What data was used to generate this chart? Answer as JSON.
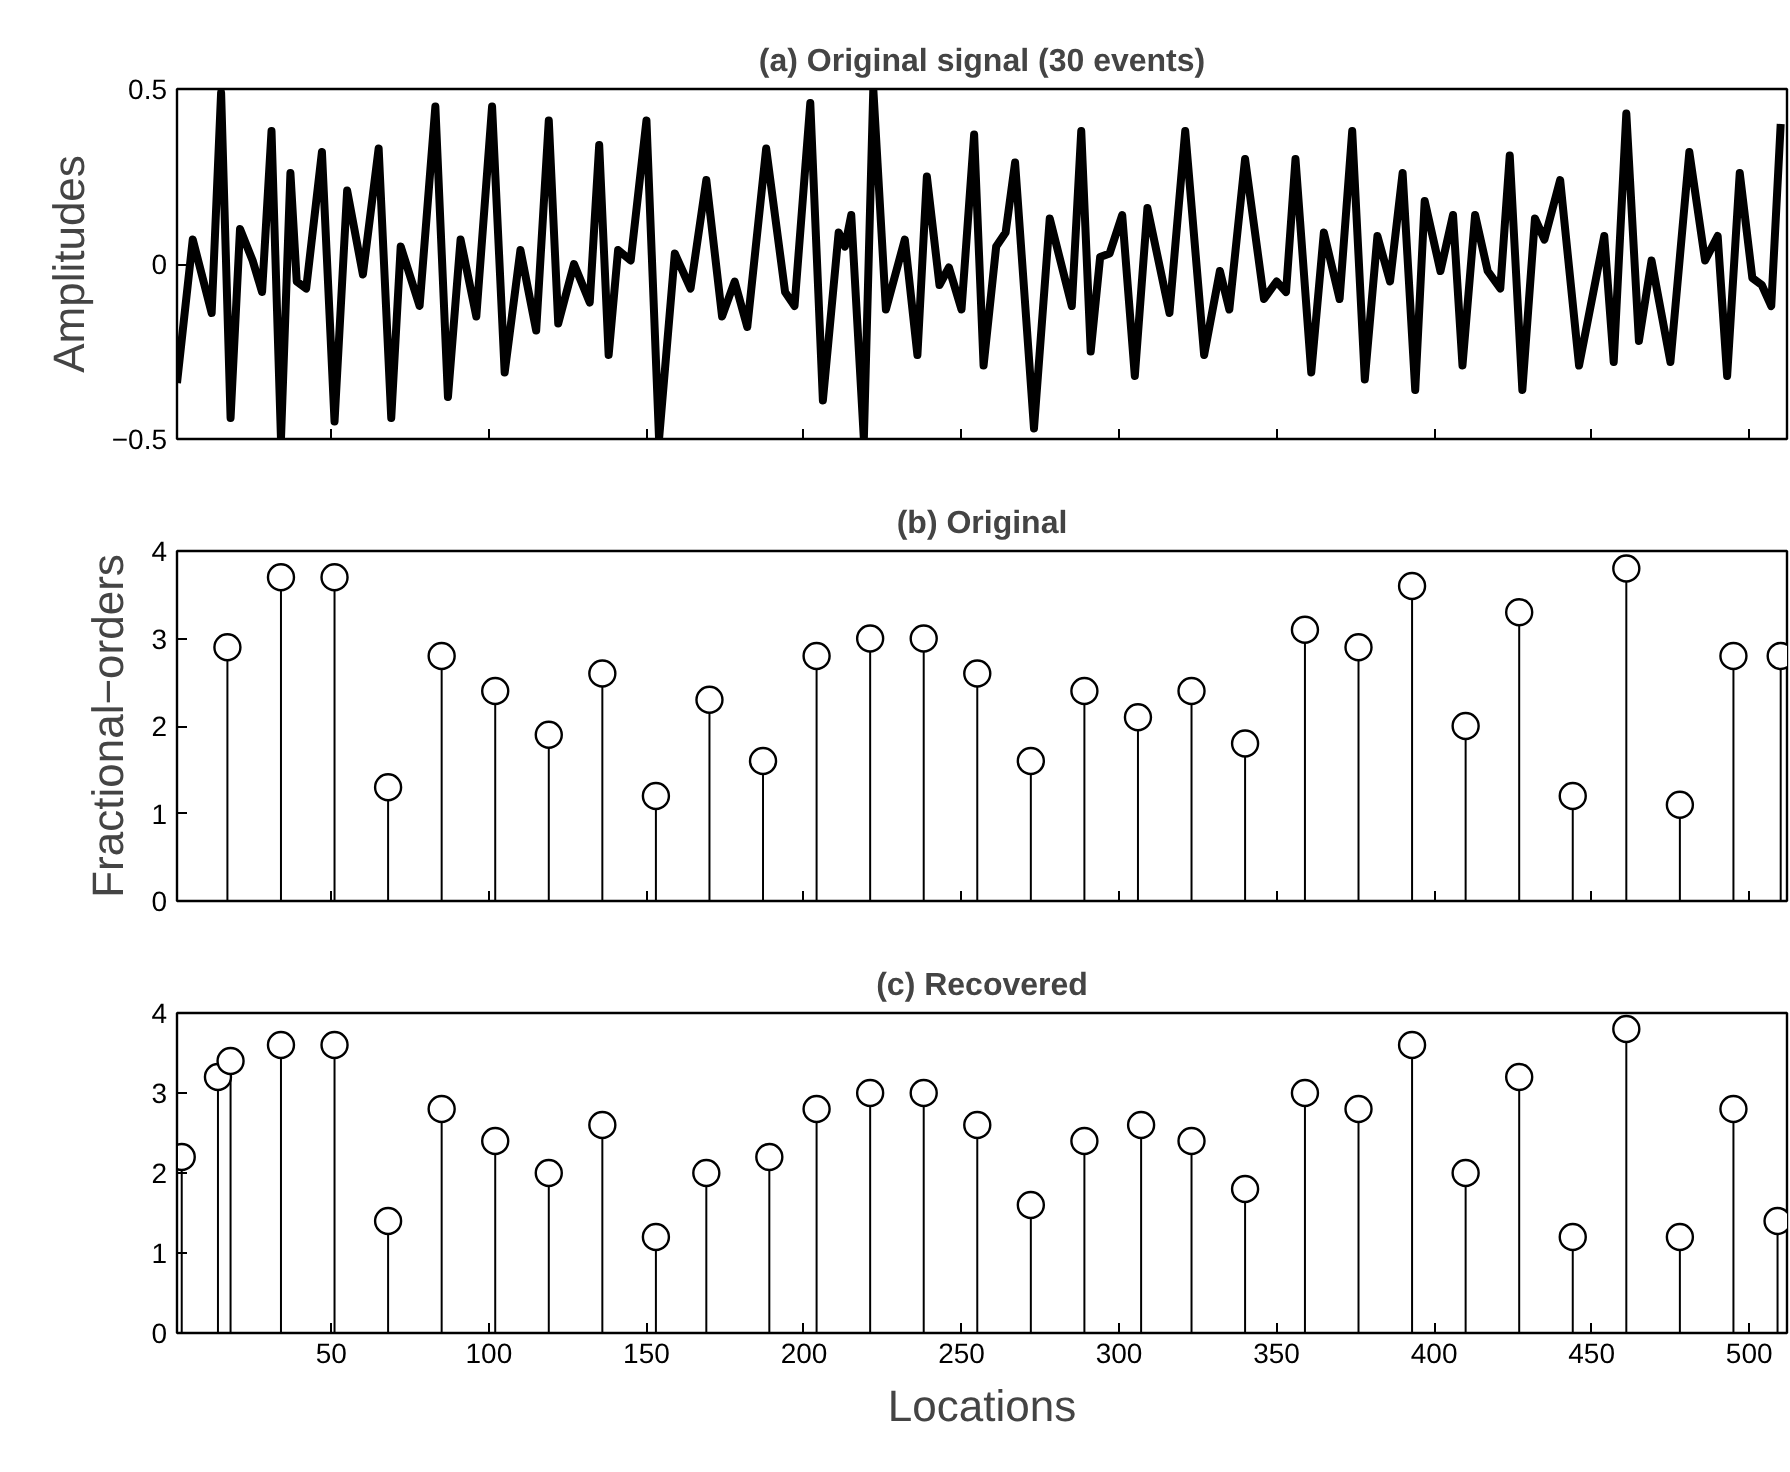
{
  "chart_data": [
    {
      "type": "line",
      "title": "(a) Original signal (30 events)",
      "ylabel": "Amplitudes",
      "xlim": [
        1,
        512
      ],
      "ylim": [
        -0.5,
        0.5
      ],
      "xticks": [
        50,
        100,
        150,
        200,
        250,
        300,
        350,
        400,
        450,
        500
      ],
      "yticks": [
        {
          "value": -0.5,
          "label": "−0.5"
        },
        0,
        0.5
      ],
      "tick_labels": "y",
      "color": "#000000",
      "x": [
        1,
        6,
        12,
        15,
        18,
        21,
        25,
        28,
        31,
        34,
        37,
        39,
        42,
        47,
        51,
        55,
        60,
        65,
        69,
        72,
        78,
        83,
        87,
        91,
        96,
        101,
        105,
        110,
        115,
        119,
        122,
        127,
        132,
        135,
        138,
        141,
        145,
        150,
        154,
        159,
        164,
        169,
        174,
        178,
        182,
        188,
        194,
        197,
        202,
        206,
        211,
        213,
        215,
        219,
        222,
        226,
        232,
        236,
        239,
        243,
        246,
        250,
        254,
        257,
        261,
        264,
        267,
        273,
        278,
        285,
        288,
        291,
        294,
        297,
        301,
        305,
        309,
        316,
        321,
        327,
        332,
        335,
        340,
        346,
        350,
        353,
        356,
        361,
        365,
        370,
        374,
        378,
        382,
        386,
        390,
        394,
        397,
        402,
        406,
        409,
        413,
        417,
        421,
        424,
        428,
        432,
        435,
        440,
        446,
        454,
        457,
        461,
        465,
        469,
        475,
        481,
        486,
        490,
        493,
        497,
        501,
        504,
        507,
        510
      ],
      "values": [
        -0.34,
        0.07,
        -0.14,
        0.49,
        -0.44,
        0.1,
        0.01,
        -0.08,
        0.38,
        -0.5,
        0.26,
        -0.05,
        -0.07,
        0.32,
        -0.45,
        0.21,
        -0.03,
        0.33,
        -0.44,
        0.05,
        -0.12,
        0.45,
        -0.38,
        0.07,
        -0.15,
        0.45,
        -0.31,
        0.04,
        -0.19,
        0.41,
        -0.17,
        0.0,
        -0.11,
        0.34,
        -0.26,
        0.04,
        0.01,
        0.41,
        -0.5,
        0.03,
        -0.07,
        0.24,
        -0.15,
        -0.05,
        -0.18,
        0.33,
        -0.08,
        -0.12,
        0.46,
        -0.39,
        0.09,
        0.05,
        0.14,
        -0.5,
        0.5,
        -0.13,
        0.07,
        -0.26,
        0.25,
        -0.06,
        -0.01,
        -0.13,
        0.37,
        -0.29,
        0.05,
        0.09,
        0.29,
        -0.47,
        0.13,
        -0.12,
        0.38,
        -0.25,
        0.02,
        0.03,
        0.14,
        -0.32,
        0.16,
        -0.14,
        0.38,
        -0.26,
        -0.02,
        -0.13,
        0.3,
        -0.1,
        -0.05,
        -0.08,
        0.3,
        -0.31,
        0.09,
        -0.1,
        0.38,
        -0.33,
        0.08,
        -0.05,
        0.26,
        -0.36,
        0.18,
        -0.02,
        0.14,
        -0.29,
        0.14,
        -0.02,
        -0.07,
        0.31,
        -0.36,
        0.13,
        0.07,
        0.24,
        -0.29,
        0.08,
        -0.28,
        0.43,
        -0.22,
        0.01,
        -0.28,
        0.32,
        0.01,
        0.08,
        -0.32,
        0.26,
        -0.04,
        -0.06,
        -0.12,
        0.4
      ]
    },
    {
      "type": "lollipop",
      "title": "(b) Original",
      "ylabel": "Fractional−orders",
      "xlim": [
        1,
        512
      ],
      "ylim": [
        0,
        4
      ],
      "xticks": [
        50,
        100,
        150,
        200,
        250,
        300,
        350,
        400,
        450,
        500
      ],
      "yticks": [
        0,
        1,
        2,
        3,
        4
      ],
      "tick_labels": "y",
      "color": "#000000",
      "marker": "circle",
      "x": [
        17,
        34,
        51,
        68,
        85,
        102,
        119,
        136,
        153,
        170,
        187,
        204,
        221,
        238,
        255,
        272,
        289,
        306,
        323,
        340,
        359,
        376,
        393,
        410,
        427,
        444,
        461,
        478,
        495,
        510
      ],
      "values": [
        2.9,
        3.7,
        3.7,
        1.3,
        2.8,
        2.4,
        1.9,
        2.6,
        1.2,
        2.3,
        1.6,
        2.8,
        3.0,
        3.0,
        2.6,
        1.6,
        2.4,
        2.1,
        2.4,
        1.8,
        3.1,
        2.9,
        3.6,
        2.0,
        3.3,
        1.2,
        3.8,
        1.1,
        2.8,
        2.8
      ]
    },
    {
      "type": "lollipop",
      "title": "(c) Recovered",
      "xlabel": "Locations",
      "xlim": [
        1,
        512
      ],
      "ylim": [
        0,
        4
      ],
      "xticks": [
        50,
        100,
        150,
        200,
        250,
        300,
        350,
        400,
        450,
        500
      ],
      "yticks": [
        0,
        1,
        2,
        3,
        4
      ],
      "color": "#000000",
      "marker": "circle",
      "x": [
        2.5,
        14,
        18,
        34,
        51,
        68,
        85,
        102,
        119,
        136,
        153,
        169,
        189,
        204,
        221,
        238,
        255,
        272,
        289,
        307,
        323,
        340,
        359,
        376,
        393,
        410,
        427,
        444,
        461,
        478,
        495,
        509
      ],
      "values": [
        2.2,
        3.2,
        3.4,
        3.6,
        3.6,
        1.4,
        2.8,
        2.4,
        2.0,
        2.6,
        1.2,
        2.0,
        2.2,
        2.8,
        3.0,
        3.0,
        2.6,
        1.6,
        2.4,
        2.6,
        2.4,
        1.8,
        3.0,
        2.8,
        3.6,
        2.0,
        3.2,
        1.2,
        3.8,
        1.2,
        2.8,
        1.4
      ]
    }
  ]
}
